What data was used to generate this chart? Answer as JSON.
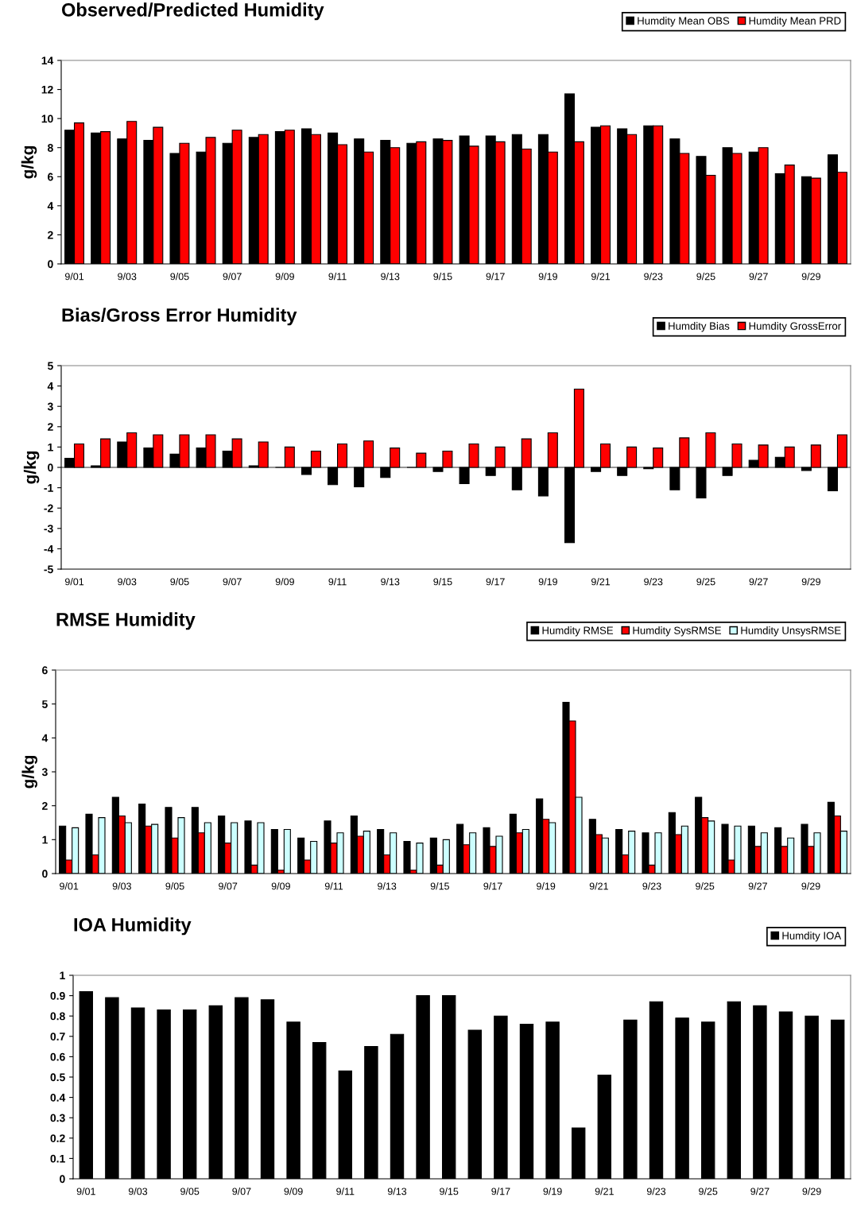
{
  "chart_data": [
    {
      "type": "bar",
      "title": "Observed/Predicted Humidity",
      "ylabel": "g/kg",
      "categories": [
        "9/01",
        null,
        "9/03",
        null,
        "9/05",
        null,
        "9/07",
        null,
        "9/09",
        null,
        "9/11",
        null,
        "9/13",
        null,
        "9/15",
        null,
        "9/17",
        null,
        "9/19",
        null,
        "9/21",
        null,
        "9/23",
        null,
        "9/25",
        null,
        "9/27",
        null,
        "9/29",
        null
      ],
      "series": [
        {
          "name": "Humdity Mean OBS",
          "color": "#000000",
          "values": [
            9.2,
            9.0,
            8.6,
            8.5,
            7.6,
            7.7,
            8.3,
            8.7,
            9.1,
            9.3,
            9.0,
            8.6,
            8.5,
            8.3,
            8.6,
            8.8,
            8.8,
            8.9,
            8.9,
            11.7,
            9.4,
            9.3,
            9.5,
            8.6,
            7.4,
            8.0,
            7.7,
            6.2,
            6.0,
            7.5
          ]
        },
        {
          "name": "Humdity Mean PRD",
          "color": "#ff0000",
          "values": [
            9.7,
            9.1,
            9.8,
            9.4,
            8.3,
            8.7,
            9.2,
            8.9,
            9.2,
            8.9,
            8.2,
            7.7,
            8.0,
            8.4,
            8.5,
            8.1,
            8.4,
            7.9,
            7.7,
            8.4,
            9.5,
            8.9,
            9.5,
            7.6,
            6.1,
            7.6,
            8.0,
            6.8,
            5.9,
            6.3
          ]
        }
      ],
      "ylim": [
        0,
        14
      ],
      "yticks": [
        0,
        2,
        4,
        6,
        8,
        10,
        12,
        14
      ],
      "grid": false,
      "legend": "top right"
    },
    {
      "type": "bar",
      "title": "Bias/Gross Error Humidity",
      "ylabel": "g/kg",
      "categories": [
        "9/01",
        null,
        "9/03",
        null,
        "9/05",
        null,
        "9/07",
        null,
        "9/09",
        null,
        "9/11",
        null,
        "9/13",
        null,
        "9/15",
        null,
        "9/17",
        null,
        "9/19",
        null,
        "9/21",
        null,
        "9/23",
        null,
        "9/25",
        null,
        "9/27",
        null,
        "9/29",
        null
      ],
      "series": [
        {
          "name": "Humdity Bias",
          "color": "#000000",
          "values": [
            0.45,
            0.08,
            1.25,
            0.95,
            0.65,
            0.95,
            0.8,
            0.08,
            0,
            -0.35,
            -0.85,
            -0.95,
            -0.5,
            0,
            -0.2,
            -0.8,
            -0.4,
            -1.1,
            -1.4,
            -3.7,
            -0.2,
            -0.4,
            -0.07,
            -1.1,
            -1.5,
            -0.4,
            0.35,
            0.5,
            -0.15,
            -1.15
          ]
        },
        {
          "name": "Humdity GrossError",
          "color": "#ff0000",
          "values": [
            1.15,
            1.4,
            1.7,
            1.6,
            1.6,
            1.6,
            1.4,
            1.25,
            1.0,
            0.8,
            1.15,
            1.3,
            0.95,
            0.7,
            0.8,
            1.15,
            1.0,
            1.4,
            1.7,
            3.85,
            1.15,
            1.0,
            0.95,
            1.45,
            1.7,
            1.15,
            1.1,
            1.0,
            1.1,
            1.6
          ]
        }
      ],
      "ylim": [
        -5,
        5
      ],
      "yticks": [
        -5,
        -4,
        -3,
        -2,
        -1,
        0,
        1,
        2,
        3,
        4,
        5
      ],
      "grid": false,
      "legend": "top right",
      "ref_lines": [
        {
          "axis": "y",
          "value": 0,
          "color": "#000000"
        }
      ]
    },
    {
      "type": "bar",
      "title": "RMSE Humidity",
      "ylabel": "g/kg",
      "categories": [
        "9/01",
        null,
        "9/03",
        null,
        "9/05",
        null,
        "9/07",
        null,
        "9/09",
        null,
        "9/11",
        null,
        "9/13",
        null,
        "9/15",
        null,
        "9/17",
        null,
        "9/19",
        null,
        "9/21",
        null,
        "9/23",
        null,
        "9/25",
        null,
        "9/27",
        null,
        "9/29",
        null
      ],
      "series": [
        {
          "name": "Humdity RMSE",
          "color": "#000000",
          "values": [
            1.4,
            1.75,
            2.25,
            2.05,
            1.95,
            1.95,
            1.7,
            1.55,
            1.3,
            1.05,
            1.55,
            1.7,
            1.3,
            0.95,
            1.05,
            1.45,
            1.35,
            1.75,
            2.2,
            5.05,
            1.6,
            1.3,
            1.2,
            1.8,
            2.25,
            1.45,
            1.4,
            1.35,
            1.45,
            2.1
          ]
        },
        {
          "name": "Humdity SysRMSE",
          "color": "#ff0000",
          "values": [
            0.4,
            0.55,
            1.7,
            1.4,
            1.05,
            1.2,
            0.9,
            0.25,
            0.1,
            0.4,
            0.9,
            1.1,
            0.55,
            0.1,
            0.25,
            0.85,
            0.8,
            1.2,
            1.6,
            4.5,
            1.15,
            0.55,
            0.25,
            1.15,
            1.65,
            0.4,
            0.8,
            0.8,
            0.8,
            1.7
          ]
        },
        {
          "name": "Humdity UnsysRMSE",
          "color": "#ccffff",
          "values": [
            1.35,
            1.65,
            1.5,
            1.45,
            1.65,
            1.5,
            1.5,
            1.5,
            1.3,
            0.95,
            1.2,
            1.25,
            1.2,
            0.9,
            1.0,
            1.2,
            1.1,
            1.3,
            1.5,
            2.25,
            1.05,
            1.25,
            1.2,
            1.4,
            1.55,
            1.4,
            1.2,
            1.05,
            1.2,
            1.25
          ]
        }
      ],
      "ylim": [
        0,
        6
      ],
      "yticks": [
        0,
        1,
        2,
        3,
        4,
        5,
        6
      ],
      "grid": false,
      "legend": "top right"
    },
    {
      "type": "bar",
      "title": "IOA Humidity",
      "categories": [
        "9/01",
        null,
        "9/03",
        null,
        "9/05",
        null,
        "9/07",
        null,
        "9/09",
        null,
        "9/11",
        null,
        "9/13",
        null,
        "9/15",
        null,
        "9/17",
        null,
        "9/19",
        null,
        "9/21",
        null,
        "9/23",
        null,
        "9/25",
        null,
        "9/27",
        null,
        "9/29",
        null
      ],
      "series": [
        {
          "name": "Humdity IOA",
          "color": "#000000",
          "values": [
            0.92,
            0.89,
            0.84,
            0.83,
            0.83,
            0.85,
            0.89,
            0.88,
            0.77,
            0.67,
            0.53,
            0.65,
            0.71,
            0.9,
            0.9,
            0.73,
            0.8,
            0.76,
            0.77,
            0.25,
            0.51,
            0.78,
            0.87,
            0.79,
            0.77,
            0.87,
            0.85,
            0.82,
            0.8,
            0.78
          ]
        }
      ],
      "ylim": [
        0,
        1
      ],
      "yticks": [
        0,
        {
          "value": 0.1,
          "label": "0.1"
        },
        {
          "value": 0.2,
          "label": "0.2"
        },
        {
          "value": 0.3,
          "label": "0.3"
        },
        {
          "value": 0.4,
          "label": "0.4"
        },
        {
          "value": 0.5,
          "label": "0.5"
        },
        {
          "value": 0.6,
          "label": "0.6"
        },
        {
          "value": 0.7,
          "label": "0.7"
        },
        {
          "value": 0.8,
          "label": "0.8"
        },
        {
          "value": 0.9,
          "label": "0.9"
        },
        1
      ],
      "grid": false,
      "legend": "top right"
    }
  ]
}
